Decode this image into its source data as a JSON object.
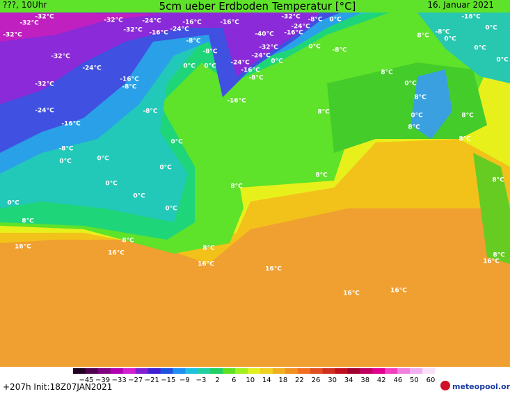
{
  "header": {
    "left": "???, 10Uhr",
    "title": "5cm ueber Erdboden Temperatur [°C]",
    "date": "16. Januar 2021"
  },
  "map": {
    "labels": [
      "-32°C",
      "-32°C",
      "-32°C",
      "-32°C",
      "-24°C",
      "-32°C",
      "-16°C",
      "-24°C",
      "-16°C",
      "-8°C",
      "-16°C",
      "-8°C",
      "0°C",
      "0°C",
      "-32°C",
      "-8°C",
      "0°C",
      "-24°C",
      "-40°C",
      "-16°C",
      "-32°C",
      "-24°C",
      "-24°C",
      "-16°C",
      "-8°C",
      "0°C",
      "0°C",
      "-8°C",
      "-16°C",
      "-32°C",
      "-24°C",
      "-16°C",
      "-8°C",
      "-32°C",
      "-24°C",
      "-8°C",
      "-16°C",
      "-8°C",
      "0°C",
      "0°C",
      "0°C",
      "0°C",
      "0°C",
      "0°C",
      "0°C",
      "0°C",
      "8°C",
      "8°C",
      "16°C",
      "16°C",
      "8°C",
      "16°C",
      "16°C",
      "16°C",
      "16°C",
      "8°C",
      "8°C",
      "8°C",
      "8°C",
      "8°C",
      "-16°C",
      "-8°C",
      "0°C",
      "0°C",
      "0°C",
      "0°C",
      "0°C",
      "8°C",
      "0°C",
      "8°C",
      "8°C",
      "8°C",
      "8°C",
      "8°C",
      "16°C"
    ]
  },
  "colorbar": {
    "ticks": [
      "−45",
      "−39",
      "−33",
      "−27",
      "−21",
      "−15",
      "−9",
      "−3",
      "2",
      "6",
      "10",
      "14",
      "18",
      "22",
      "26",
      "30",
      "34",
      "38",
      "42",
      "46",
      "50",
      "60"
    ]
  },
  "footer": {
    "run": "+207h Init:18Z07JAN2021",
    "logo": "meteopool.org"
  }
}
